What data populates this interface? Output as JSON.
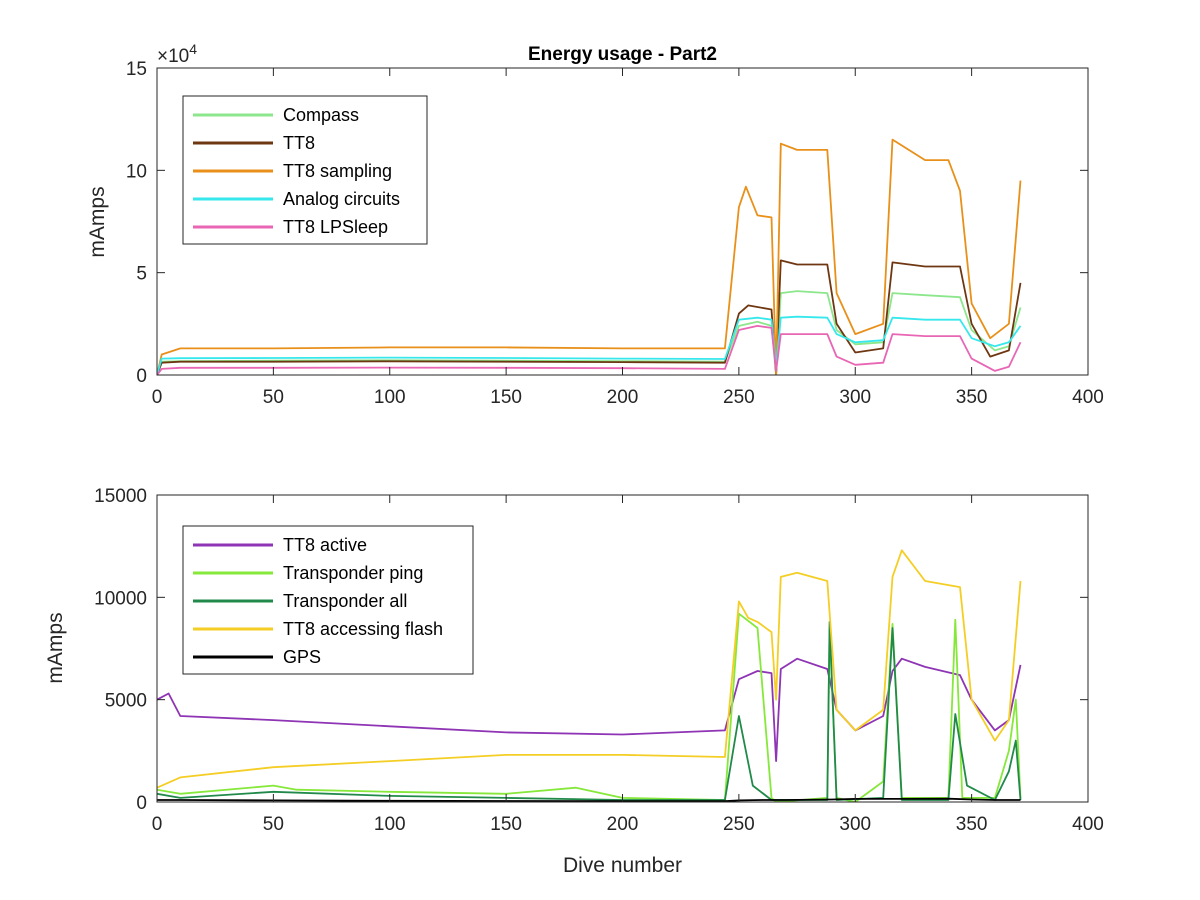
{
  "chart_data": [
    {
      "type": "line",
      "title": "Energy usage - Part2",
      "xlabel": "",
      "ylabel": "mAmps",
      "xlim": [
        0,
        400
      ],
      "ylim": [
        0,
        150000
      ],
      "xticks": [
        "0",
        "50",
        "100",
        "150",
        "200",
        "250",
        "300",
        "350",
        "400"
      ],
      "yticks": [
        "0",
        "5",
        "10",
        "15"
      ],
      "yexponent": "×10^4",
      "grid": false,
      "legend_position": "top-left",
      "series": [
        {
          "name": "Compass",
          "color": "#8ce68c",
          "points": [
            [
              0,
              0
            ],
            [
              2,
              6500
            ],
            [
              10,
              6800
            ],
            [
              50,
              7000
            ],
            [
              100,
              7200
            ],
            [
              150,
              7000
            ],
            [
              200,
              6800
            ],
            [
              244,
              6500
            ],
            [
              250,
              24000
            ],
            [
              258,
              26000
            ],
            [
              264,
              24000
            ],
            [
              266,
              0
            ],
            [
              268,
              40000
            ],
            [
              275,
              41000
            ],
            [
              288,
              40000
            ],
            [
              292,
              22000
            ],
            [
              300,
              15000
            ],
            [
              312,
              16000
            ],
            [
              316,
              40000
            ],
            [
              330,
              39000
            ],
            [
              345,
              38000
            ],
            [
              350,
              22000
            ],
            [
              360,
              12000
            ],
            [
              366,
              14000
            ],
            [
              371,
              33000
            ]
          ]
        },
        {
          "name": "TT8",
          "color": "#6e3712",
          "points": [
            [
              0,
              0
            ],
            [
              2,
              6000
            ],
            [
              10,
              6500
            ],
            [
              50,
              6500
            ],
            [
              100,
              6700
            ],
            [
              150,
              6500
            ],
            [
              200,
              6300
            ],
            [
              244,
              6000
            ],
            [
              250,
              30000
            ],
            [
              254,
              34000
            ],
            [
              264,
              32000
            ],
            [
              266,
              0
            ],
            [
              268,
              56000
            ],
            [
              275,
              54000
            ],
            [
              288,
              54000
            ],
            [
              292,
              25000
            ],
            [
              300,
              11000
            ],
            [
              312,
              13000
            ],
            [
              316,
              55000
            ],
            [
              330,
              53000
            ],
            [
              345,
              53000
            ],
            [
              350,
              25000
            ],
            [
              358,
              9000
            ],
            [
              366,
              12000
            ],
            [
              371,
              45000
            ]
          ]
        },
        {
          "name": "TT8 sampling",
          "color": "#e8901a",
          "points": [
            [
              0,
              0
            ],
            [
              2,
              10000
            ],
            [
              10,
              13000
            ],
            [
              50,
              13000
            ],
            [
              100,
              13500
            ],
            [
              150,
              13500
            ],
            [
              200,
              13000
            ],
            [
              244,
              13000
            ],
            [
              250,
              82000
            ],
            [
              253,
              92000
            ],
            [
              258,
              78000
            ],
            [
              264,
              77000
            ],
            [
              266,
              0
            ],
            [
              268,
              113000
            ],
            [
              275,
              110000
            ],
            [
              288,
              110000
            ],
            [
              292,
              40000
            ],
            [
              300,
              20000
            ],
            [
              312,
              25000
            ],
            [
              316,
              115000
            ],
            [
              330,
              105000
            ],
            [
              340,
              105000
            ],
            [
              345,
              90000
            ],
            [
              350,
              35000
            ],
            [
              358,
              18000
            ],
            [
              366,
              25000
            ],
            [
              371,
              95000
            ]
          ]
        },
        {
          "name": "Analog circuits",
          "color": "#36e8ec",
          "points": [
            [
              0,
              0
            ],
            [
              2,
              8000
            ],
            [
              10,
              8200
            ],
            [
              50,
              8300
            ],
            [
              100,
              8500
            ],
            [
              150,
              8300
            ],
            [
              200,
              8000
            ],
            [
              244,
              7800
            ],
            [
              250,
              27000
            ],
            [
              258,
              28000
            ],
            [
              264,
              27000
            ],
            [
              266,
              4000
            ],
            [
              268,
              28000
            ],
            [
              275,
              28500
            ],
            [
              288,
              28000
            ],
            [
              292,
              20000
            ],
            [
              300,
              16000
            ],
            [
              312,
              17000
            ],
            [
              316,
              28000
            ],
            [
              330,
              27000
            ],
            [
              345,
              27000
            ],
            [
              350,
              18000
            ],
            [
              360,
              14000
            ],
            [
              366,
              16000
            ],
            [
              371,
              24000
            ]
          ]
        },
        {
          "name": "TT8 LPSleep",
          "color": "#e866b4",
          "points": [
            [
              0,
              0
            ],
            [
              2,
              3000
            ],
            [
              10,
              3500
            ],
            [
              50,
              3500
            ],
            [
              100,
              3600
            ],
            [
              150,
              3500
            ],
            [
              200,
              3300
            ],
            [
              244,
              3000
            ],
            [
              250,
              22000
            ],
            [
              258,
              24000
            ],
            [
              264,
              23000
            ],
            [
              266,
              2000
            ],
            [
              268,
              20000
            ],
            [
              275,
              20000
            ],
            [
              288,
              20000
            ],
            [
              292,
              9000
            ],
            [
              300,
              5000
            ],
            [
              312,
              6000
            ],
            [
              316,
              20000
            ],
            [
              330,
              19000
            ],
            [
              345,
              19000
            ],
            [
              350,
              8000
            ],
            [
              360,
              2000
            ],
            [
              366,
              4000
            ],
            [
              371,
              16000
            ]
          ]
        }
      ]
    },
    {
      "type": "line",
      "title": "",
      "xlabel": "Dive number",
      "ylabel": "mAmps",
      "xlim": [
        0,
        400
      ],
      "ylim": [
        0,
        15000
      ],
      "xticks": [
        "0",
        "50",
        "100",
        "150",
        "200",
        "250",
        "300",
        "350",
        "400"
      ],
      "yticks": [
        "0",
        "5000",
        "10000",
        "15000"
      ],
      "grid": false,
      "legend_position": "top-left",
      "series": [
        {
          "name": "TT8 active",
          "color": "#8e34b4",
          "points": [
            [
              0,
              5000
            ],
            [
              5,
              5300
            ],
            [
              10,
              4200
            ],
            [
              50,
              4000
            ],
            [
              100,
              3700
            ],
            [
              150,
              3400
            ],
            [
              200,
              3300
            ],
            [
              244,
              3500
            ],
            [
              250,
              6000
            ],
            [
              258,
              6400
            ],
            [
              264,
              6300
            ],
            [
              266,
              2000
            ],
            [
              268,
              6500
            ],
            [
              275,
              7000
            ],
            [
              288,
              6500
            ],
            [
              292,
              4500
            ],
            [
              300,
              3500
            ],
            [
              312,
              4200
            ],
            [
              316,
              6400
            ],
            [
              320,
              7000
            ],
            [
              330,
              6600
            ],
            [
              345,
              6200
            ],
            [
              350,
              5000
            ],
            [
              360,
              3500
            ],
            [
              366,
              4000
            ],
            [
              371,
              6700
            ]
          ]
        },
        {
          "name": "Transponder ping",
          "color": "#86e83a",
          "points": [
            [
              0,
              600
            ],
            [
              10,
              400
            ],
            [
              50,
              800
            ],
            [
              60,
              600
            ],
            [
              100,
              500
            ],
            [
              150,
              400
            ],
            [
              180,
              700
            ],
            [
              200,
              200
            ],
            [
              244,
              100
            ],
            [
              250,
              9200
            ],
            [
              258,
              8500
            ],
            [
              264,
              200
            ],
            [
              266,
              0
            ],
            [
              288,
              200
            ],
            [
              289,
              8500
            ],
            [
              292,
              200
            ],
            [
              300,
              0
            ],
            [
              312,
              1000
            ],
            [
              316,
              8700
            ],
            [
              320,
              200
            ],
            [
              340,
              200
            ],
            [
              343,
              8900
            ],
            [
              346,
              200
            ],
            [
              360,
              200
            ],
            [
              366,
              2500
            ],
            [
              369,
              5000
            ],
            [
              371,
              200
            ]
          ]
        },
        {
          "name": "Transponder all",
          "color": "#218a4a",
          "points": [
            [
              0,
              400
            ],
            [
              10,
              200
            ],
            [
              50,
              500
            ],
            [
              100,
              300
            ],
            [
              150,
              200
            ],
            [
              200,
              100
            ],
            [
              244,
              100
            ],
            [
              250,
              4200
            ],
            [
              256,
              800
            ],
            [
              264,
              100
            ],
            [
              288,
              100
            ],
            [
              289,
              8800
            ],
            [
              292,
              100
            ],
            [
              312,
              200
            ],
            [
              316,
              8500
            ],
            [
              320,
              100
            ],
            [
              340,
              100
            ],
            [
              343,
              4300
            ],
            [
              348,
              800
            ],
            [
              360,
              100
            ],
            [
              366,
              1500
            ],
            [
              369,
              3000
            ],
            [
              371,
              100
            ]
          ]
        },
        {
          "name": "TT8 accessing flash",
          "color": "#f4ce24",
          "points": [
            [
              0,
              700
            ],
            [
              10,
              1200
            ],
            [
              50,
              1700
            ],
            [
              100,
              2000
            ],
            [
              150,
              2300
            ],
            [
              200,
              2300
            ],
            [
              244,
              2200
            ],
            [
              250,
              9800
            ],
            [
              254,
              9000
            ],
            [
              258,
              8800
            ],
            [
              264,
              8300
            ],
            [
              266,
              5000
            ],
            [
              268,
              11000
            ],
            [
              275,
              11200
            ],
            [
              288,
              10800
            ],
            [
              292,
              4500
            ],
            [
              300,
              3500
            ],
            [
              312,
              4500
            ],
            [
              316,
              11000
            ],
            [
              320,
              12300
            ],
            [
              330,
              10800
            ],
            [
              345,
              10500
            ],
            [
              350,
              5000
            ],
            [
              360,
              3000
            ],
            [
              366,
              4000
            ],
            [
              371,
              10800
            ]
          ]
        },
        {
          "name": "GPS",
          "color": "#000000",
          "points": [
            [
              0,
              100
            ],
            [
              10,
              100
            ],
            [
              50,
              80
            ],
            [
              100,
              60
            ],
            [
              150,
              50
            ],
            [
              200,
              40
            ],
            [
              244,
              40
            ],
            [
              250,
              80
            ],
            [
              260,
              100
            ],
            [
              270,
              100
            ],
            [
              290,
              120
            ],
            [
              300,
              150
            ],
            [
              320,
              150
            ],
            [
              340,
              160
            ],
            [
              350,
              120
            ],
            [
              360,
              100
            ],
            [
              371,
              100
            ]
          ]
        }
      ]
    }
  ]
}
